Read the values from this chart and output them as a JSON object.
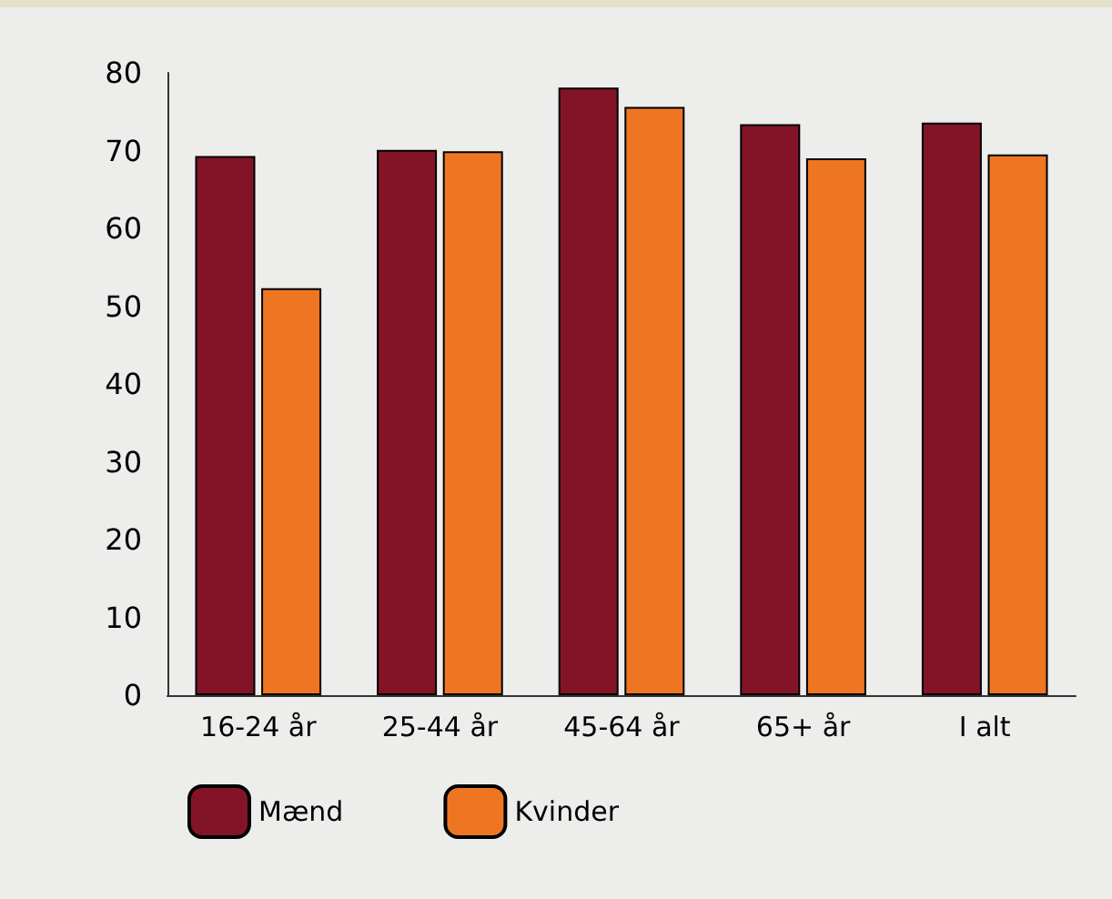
{
  "chart_data": {
    "type": "bar",
    "categories": [
      "16-24 år",
      "25-44 år",
      "45-64 år",
      "65+ år",
      "I alt"
    ],
    "series": [
      {
        "name": "Mænd",
        "color": "#831427",
        "values": [
          69.3,
          70.1,
          78.1,
          73.4,
          73.6
        ]
      },
      {
        "name": "Kvinder",
        "color": "#ee7623",
        "values": [
          52.3,
          69.9,
          75.6,
          69.0,
          69.5
        ]
      }
    ],
    "ylim": [
      0,
      80
    ],
    "yticks": [
      0,
      10,
      20,
      30,
      40,
      50,
      60,
      70,
      80
    ],
    "grid": false,
    "legend": "bottom left"
  }
}
